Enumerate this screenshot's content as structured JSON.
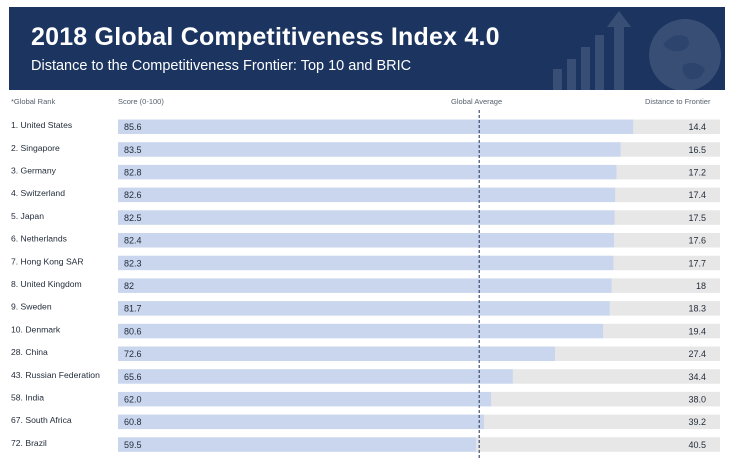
{
  "header": {
    "title": "2018 Global Competitiveness Index 4.0",
    "subtitle": "Distance to the Competitiveness Frontier: Top 10 and BRIC"
  },
  "columns": {
    "rank": "*Global Rank",
    "score": "Score (0-100)",
    "average": "Global Average",
    "distance": "Distance to Frontier"
  },
  "colors": {
    "banner": "#1b3460",
    "score_bar": "#c9d6ee",
    "frontier_bar": "#e7e7e7",
    "average_line": "#2c3e63",
    "text": "#1f2937"
  },
  "chart_data": {
    "type": "bar",
    "orientation": "horizontal",
    "stacked": true,
    "xlim": [
      0,
      100
    ],
    "global_average": 60.0,
    "categories": [
      "1. United States",
      "2. Singapore",
      "3. Germany",
      "4. Switzerland",
      "5. Japan",
      "6. Netherlands",
      "7. Hong Kong SAR",
      "8. United Kingdom",
      "9. Sweden",
      "10. Denmark",
      "28. China",
      "43. Russian Federation",
      "58. India",
      "67. South Africa",
      "72. Brazil"
    ],
    "score_labels": [
      "85.6",
      "83.5",
      "82.8",
      "82.6",
      "82.5",
      "82.4",
      "82.3",
      "82",
      "81.7",
      "80.6",
      "72.6",
      "65.6",
      "62.0",
      "60.8",
      "59.5"
    ],
    "distance_labels": [
      "14.4",
      "16.5",
      "17.2",
      "17.4",
      "17.5",
      "17.6",
      "17.7",
      "18",
      "18.3",
      "19.4",
      "27.4",
      "34.4",
      "38.0",
      "39.2",
      "40.5"
    ],
    "series": [
      {
        "values": [
          85.6,
          83.5,
          82.8,
          82.6,
          82.5,
          82.4,
          82.3,
          82,
          81.7,
          80.6,
          72.6,
          65.6,
          62.0,
          60.8,
          59.5
        ]
      },
      {
        "values": [
          14.4,
          16.5,
          17.2,
          17.4,
          17.5,
          17.6,
          17.7,
          18,
          18.3,
          19.4,
          27.4,
          34.4,
          38.0,
          39.2,
          40.5
        ]
      }
    ]
  }
}
